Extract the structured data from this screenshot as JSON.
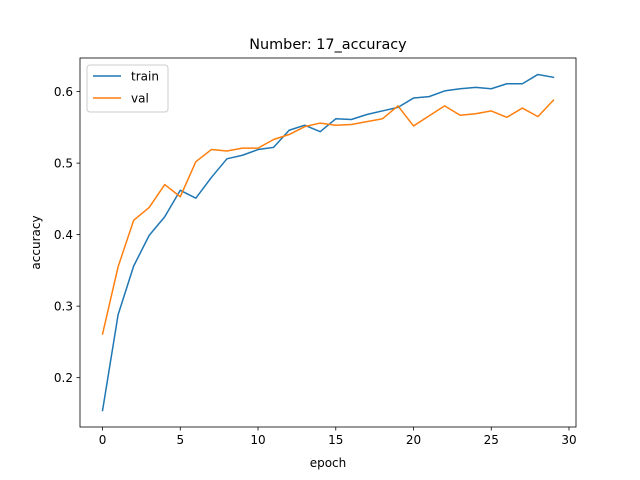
{
  "chart_data": {
    "type": "line",
    "title": "Number: 17_accuracy",
    "xlabel": "epoch",
    "ylabel": "accuracy",
    "xlim": [
      -1.45,
      30.45
    ],
    "ylim": [
      0.131,
      0.647
    ],
    "xticks": [
      0,
      5,
      10,
      15,
      20,
      25,
      30
    ],
    "yticks": [
      0.2,
      0.3,
      0.4,
      0.5,
      0.6
    ],
    "grid": false,
    "legend": "upper-left",
    "x": [
      0,
      1,
      2,
      3,
      4,
      5,
      6,
      7,
      8,
      9,
      10,
      11,
      12,
      13,
      14,
      15,
      16,
      17,
      18,
      19,
      20,
      21,
      22,
      23,
      24,
      25,
      26,
      27,
      28,
      29
    ],
    "series": [
      {
        "name": "train",
        "color": "#1f77b4",
        "values": [
          0.154,
          0.288,
          0.356,
          0.399,
          0.425,
          0.462,
          0.451,
          0.48,
          0.506,
          0.511,
          0.519,
          0.522,
          0.546,
          0.553,
          0.544,
          0.562,
          0.561,
          0.568,
          0.573,
          0.578,
          0.591,
          0.593,
          0.601,
          0.604,
          0.606,
          0.604,
          0.611,
          0.611,
          0.624,
          0.62
        ]
      },
      {
        "name": "val",
        "color": "#ff7f0e",
        "values": [
          0.261,
          0.355,
          0.42,
          0.438,
          0.47,
          0.453,
          0.502,
          0.519,
          0.517,
          0.521,
          0.521,
          0.533,
          0.54,
          0.551,
          0.556,
          0.553,
          0.554,
          0.558,
          0.562,
          0.58,
          0.552,
          0.566,
          0.58,
          0.567,
          0.569,
          0.573,
          0.564,
          0.577,
          0.565,
          0.588
        ]
      }
    ]
  }
}
